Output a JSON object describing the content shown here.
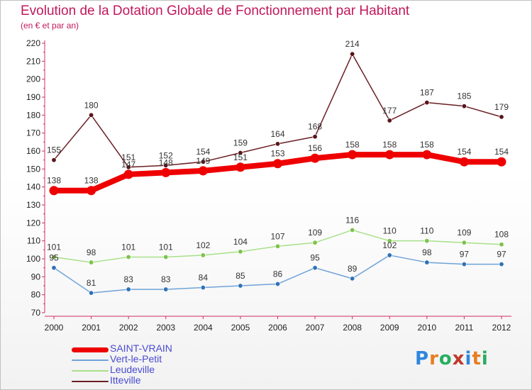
{
  "title": "Evolution de la Dotation Globale de Fonctionnement par Habitant",
  "subtitle": "(en € et par an)",
  "logo": {
    "text": "Proxiti",
    "colors": [
      "#2e86de",
      "#e67e22",
      "#27ae60",
      "#c0392b",
      "#2e86de",
      "#e67e22",
      "#27ae60"
    ]
  },
  "chart_data": {
    "type": "line",
    "x": [
      "2000",
      "2001",
      "2002",
      "2003",
      "2004",
      "2005",
      "2006",
      "2007",
      "2008",
      "2009",
      "2010",
      "2011",
      "2012"
    ],
    "ylim": [
      70,
      220
    ],
    "yticks": [
      70,
      80,
      90,
      100,
      110,
      120,
      130,
      140,
      150,
      160,
      170,
      180,
      190,
      200,
      210,
      220
    ],
    "grid": false,
    "legend": "bottom-left",
    "series": [
      {
        "name": "Itteville",
        "color": "#6b1f24",
        "marker": "#5a1418",
        "values": [
          155,
          180,
          151,
          152,
          154,
          159,
          164,
          168,
          214,
          177,
          187,
          185,
          179
        ]
      },
      {
        "name": "Leudeville",
        "color": "#a8e08a",
        "marker": "#7cc34a",
        "values": [
          101,
          98,
          101,
          101,
          102,
          104,
          107,
          109,
          116,
          110,
          110,
          109,
          108
        ]
      },
      {
        "name": "Vert-le-Petit",
        "color": "#6fa3d8",
        "marker": "#2f72b8",
        "values": [
          95,
          81,
          83,
          83,
          84,
          85,
          86,
          95,
          89,
          102,
          98,
          97,
          97
        ]
      },
      {
        "name": "SAINT-VRAIN",
        "color": "#ee0000",
        "marker": "#ee0000",
        "values": [
          138,
          138,
          147,
          148,
          149,
          151,
          153,
          156,
          158,
          158,
          158,
          154,
          154
        ]
      }
    ],
    "labels": {
      "Itteville": [
        "155",
        "180",
        "151",
        "152",
        "154",
        "159",
        "164",
        "168",
        "214",
        "177",
        "187",
        "185",
        "179"
      ],
      "Leudeville": [
        "101",
        "98",
        "101",
        "101",
        "102",
        "104",
        "107",
        "109",
        "116",
        "110",
        "110",
        "109",
        "108"
      ],
      "Vert-le-Petit": [
        "95",
        "81",
        "83",
        "83",
        "84",
        "85",
        "86",
        "95",
        "89",
        "102",
        "98",
        "97",
        "97"
      ],
      "SAINT-VRAIN": [
        "138",
        "138",
        "147",
        "148",
        "149",
        "151",
        "153",
        "156",
        "158",
        "158",
        "158",
        "154",
        "154"
      ]
    }
  },
  "legend": [
    {
      "name": "SAINT-VRAIN",
      "color": "#ee0000",
      "weight": 7
    },
    {
      "name": "Vert-le-Petit",
      "color": "#6fa3d8",
      "weight": 2
    },
    {
      "name": "Leudeville",
      "color": "#a8e08a",
      "weight": 2
    },
    {
      "name": "Itteville",
      "color": "#6b1f24",
      "weight": 2
    }
  ]
}
